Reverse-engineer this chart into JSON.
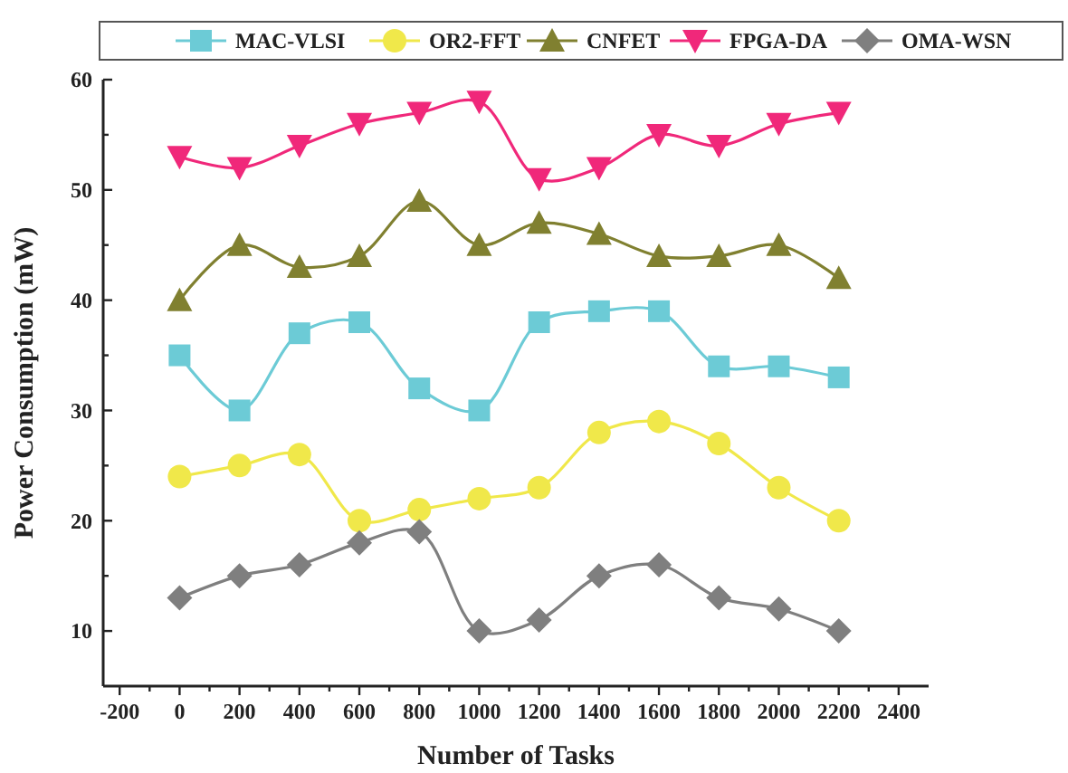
{
  "chart_data": {
    "type": "line",
    "xlabel": "Number of Tasks",
    "ylabel": "Power Consumption (mW)",
    "x": [
      0,
      200,
      400,
      600,
      800,
      1000,
      1200,
      1400,
      1600,
      1800,
      2000,
      2200
    ],
    "xlim": [
      -255,
      2500
    ],
    "ylim": [
      5,
      60
    ],
    "xticks": [
      -200,
      {
        "value": -100,
        "label": null
      },
      0,
      {
        "value": 100,
        "label": null
      },
      200,
      {
        "value": 300,
        "label": null
      },
      400,
      {
        "value": 500,
        "label": null
      },
      600,
      {
        "value": 700,
        "label": null
      },
      800,
      {
        "value": 900,
        "label": null
      },
      1000,
      {
        "value": 1100,
        "label": null
      },
      1200,
      {
        "value": 1300,
        "label": null
      },
      1400,
      {
        "value": 1500,
        "label": null
      },
      1600,
      {
        "value": 1700,
        "label": null
      },
      1800,
      {
        "value": 1900,
        "label": null
      },
      2000,
      {
        "value": 2100,
        "label": null
      },
      2200,
      {
        "value": 2300,
        "label": null
      },
      2400
    ],
    "yticks": [
      10,
      {
        "value": 15,
        "label": null
      },
      20,
      {
        "value": 25,
        "label": null
      },
      30,
      {
        "value": 35,
        "label": null
      },
      40,
      {
        "value": 45,
        "label": null
      },
      50,
      {
        "value": 55,
        "label": null
      },
      60
    ],
    "legend": "top",
    "grid": false,
    "line_style": "solid",
    "series": [
      {
        "name": "MAC-VLSI",
        "color": "#6ccbd6",
        "marker": "square",
        "values": [
          35,
          30,
          37,
          38,
          32,
          30,
          38,
          39,
          39,
          34,
          34,
          33
        ]
      },
      {
        "name": "OR2-FFT",
        "color": "#f0e84a",
        "marker": "circle",
        "values": [
          24,
          25,
          26,
          20,
          21,
          22,
          23,
          28,
          29,
          27,
          23,
          20
        ]
      },
      {
        "name": "CNFET",
        "color": "#808030",
        "marker": "triangle",
        "values": [
          40,
          45,
          43,
          44,
          49,
          45,
          47,
          46,
          44,
          44,
          45,
          42
        ]
      },
      {
        "name": "FPGA-DA",
        "color": "#f0287a",
        "marker": "triangle-down",
        "values": [
          53,
          52,
          54,
          56,
          57,
          58,
          51,
          52,
          55,
          54,
          56,
          57
        ]
      },
      {
        "name": "OMA-WSN",
        "color": "#7f7f7f",
        "marker": "diamond",
        "values": [
          13,
          15,
          16,
          18,
          19,
          10,
          11,
          15,
          16,
          13,
          12,
          10
        ]
      }
    ]
  }
}
